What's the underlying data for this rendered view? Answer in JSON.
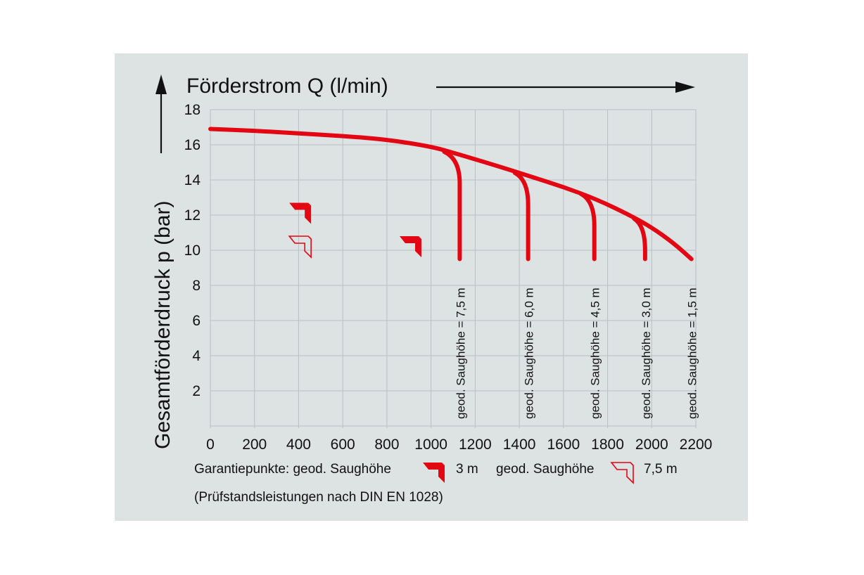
{
  "chart_data": {
    "type": "line",
    "xlabel": "Förderstrom Q (l/min)",
    "ylabel": "Gesamtförderdruck p (bar)",
    "xlim": [
      0,
      2200
    ],
    "ylim": [
      0,
      18
    ],
    "x_ticks": [
      0,
      200,
      400,
      600,
      800,
      1000,
      1200,
      1400,
      1600,
      1800,
      2000,
      2200
    ],
    "y_ticks": [
      2,
      4,
      6,
      8,
      10,
      12,
      14,
      16,
      18
    ],
    "x_tick_labels": [
      "0",
      "200",
      "400",
      "600",
      "800",
      "1000",
      "1200",
      "1400",
      "1600",
      "1800",
      "2000",
      "2200"
    ],
    "y_tick_labels": [
      "2",
      "4",
      "6",
      "8",
      "10",
      "12",
      "14",
      "16",
      "18"
    ],
    "grid": true,
    "main_curve": {
      "x": [
        0,
        200,
        400,
        600,
        800,
        1000,
        1100,
        1300,
        1450,
        1600,
        1750,
        1900,
        2000,
        2100,
        2180
      ],
      "y": [
        16.9,
        16.8,
        16.65,
        16.5,
        16.3,
        15.9,
        15.55,
        14.8,
        14.2,
        13.6,
        12.9,
        12.0,
        11.3,
        10.4,
        9.5
      ]
    },
    "cutoff_branches": [
      {
        "label": "geod. Saughöhe = 7,5 m",
        "start_x": 1060,
        "start_y": 15.6,
        "x": 1130,
        "y_end": 9.5
      },
      {
        "label": "geod. Saughöhe = 6,0 m",
        "start_x": 1380,
        "start_y": 14.4,
        "x": 1440,
        "y_end": 9.5
      },
      {
        "label": "geod. Saughöhe = 4,5 m",
        "start_x": 1680,
        "start_y": 13.2,
        "x": 1740,
        "y_end": 9.5
      },
      {
        "label": "geod. Saughöhe = 3,0 m",
        "start_x": 1920,
        "start_y": 11.8,
        "x": 1970,
        "y_end": 9.5
      },
      {
        "label": "geod. Saughöhe = 1,5 m",
        "start_x": null,
        "start_y": null,
        "x": 2180,
        "y_end": 9.5
      }
    ],
    "guarantee_points": [
      {
        "x": 450,
        "y": 11.5,
        "style": "filled"
      },
      {
        "x": 950,
        "y": 9.6,
        "style": "filled"
      },
      {
        "x": 450,
        "y": 9.6,
        "style": "outline"
      }
    ]
  },
  "legend": {
    "line1_prefix": "Garantiepunkte: geod. Saughöhe",
    "filled_value": "3 m",
    "outline_prefix": "geod. Saughöhe",
    "outline_value": "7,5 m",
    "line2": "(Prüfstandsleistungen nach DIN EN 1028)"
  },
  "colors": {
    "background": "#dde2e3",
    "curve": "#e30613",
    "grid": "#b9c0c3",
    "text": "#111111"
  }
}
